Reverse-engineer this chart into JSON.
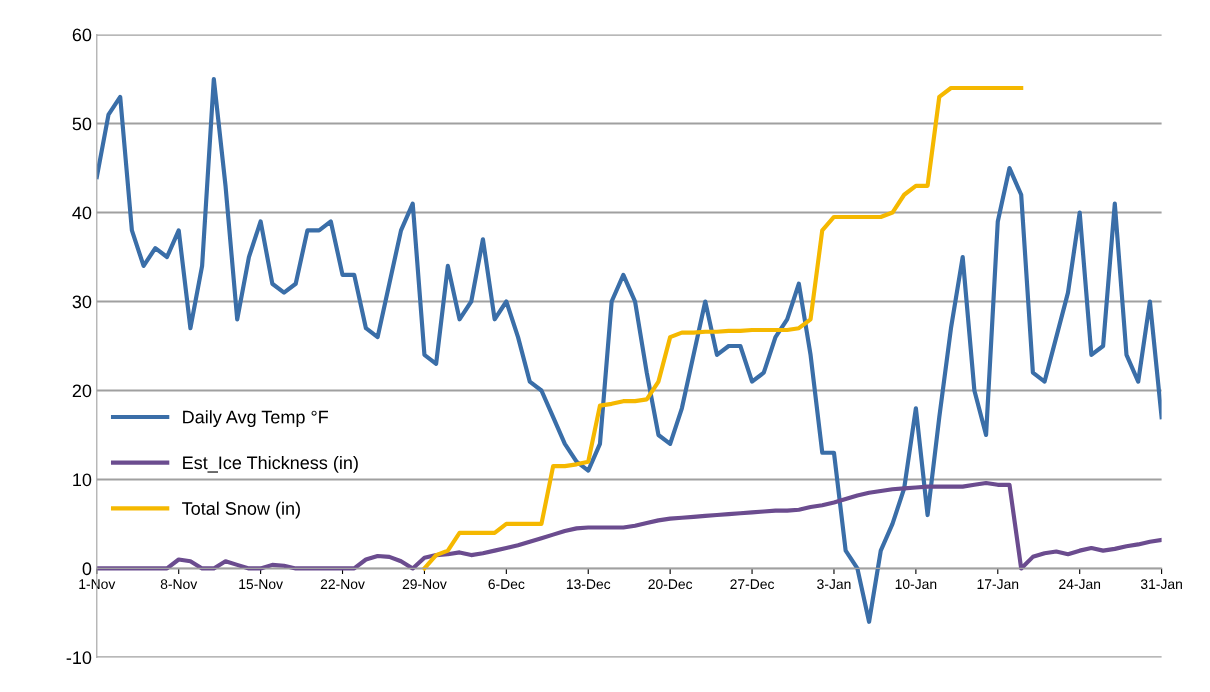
{
  "chart_data": {
    "type": "line",
    "categories": [
      "1-Nov",
      null,
      null,
      null,
      null,
      null,
      null,
      "8-Nov",
      null,
      null,
      null,
      null,
      null,
      null,
      "15-Nov",
      null,
      null,
      null,
      null,
      null,
      null,
      "22-Nov",
      null,
      null,
      null,
      null,
      null,
      null,
      "29-Nov",
      null,
      null,
      null,
      null,
      null,
      null,
      "6-Dec",
      null,
      null,
      null,
      null,
      null,
      null,
      "13-Dec",
      null,
      null,
      null,
      null,
      null,
      null,
      "20-Dec",
      null,
      null,
      null,
      null,
      null,
      null,
      "27-Dec",
      null,
      null,
      null,
      null,
      null,
      null,
      "3-Jan",
      null,
      null,
      null,
      null,
      null,
      null,
      "10-Jan",
      null,
      null,
      null,
      null,
      null,
      null,
      "17-Jan",
      null,
      null,
      null,
      null,
      null,
      null,
      "24-Jan",
      null,
      null,
      null,
      null,
      null,
      null,
      "31-Jan"
    ],
    "series": [
      {
        "name": "Daily Avg Temp °F",
        "color": "#3a6ea8",
        "values": [
          44,
          51,
          53,
          38,
          34,
          36,
          35,
          38,
          27,
          34,
          55,
          43,
          28,
          35,
          39,
          32,
          31,
          32,
          38,
          38,
          39,
          33,
          33,
          27,
          26,
          32,
          38,
          41,
          24,
          23,
          34,
          28,
          30,
          37,
          28,
          30,
          26,
          21,
          20,
          17,
          14,
          12,
          11,
          14,
          30,
          33,
          30,
          22,
          15,
          14,
          18,
          24,
          30,
          24,
          25,
          25,
          21,
          22,
          26,
          28,
          32,
          24,
          13,
          13,
          2,
          0,
          -6,
          2,
          5,
          9,
          18,
          6,
          17,
          27,
          35,
          20,
          15,
          39,
          45,
          42,
          22,
          21,
          26,
          31,
          40,
          24,
          25,
          41,
          24,
          21,
          30,
          17
        ]
      },
      {
        "name": "Est_Ice Thickness (in)",
        "color": "#6b4c8f",
        "values": [
          0,
          0,
          0,
          0,
          0,
          0,
          0,
          1,
          0.8,
          0,
          0,
          0.8,
          0.4,
          0,
          0,
          0.4,
          0.3,
          0,
          0,
          0,
          0,
          0,
          0,
          1,
          1.4,
          1.3,
          0.8,
          0,
          1.2,
          1.5,
          1.6,
          1.8,
          1.5,
          1.7,
          2.0,
          2.3,
          2.6,
          3.0,
          3.4,
          3.8,
          4.2,
          4.5,
          4.6,
          4.6,
          4.6,
          4.6,
          4.8,
          5.1,
          5.4,
          5.6,
          5.7,
          5.8,
          5.9,
          6.0,
          6.1,
          6.2,
          6.3,
          6.4,
          6.5,
          6.5,
          6.6,
          6.9,
          7.1,
          7.4,
          7.8,
          8.2,
          8.5,
          8.7,
          8.9,
          9.0,
          9.1,
          9.2,
          9.2,
          9.2,
          9.2,
          9.4,
          9.6,
          9.4,
          9.4,
          0,
          1.3,
          1.7,
          1.9,
          1.6,
          2.0,
          2.3,
          2.0,
          2.2,
          2.5,
          2.7,
          3.0,
          3.2
        ]
      },
      {
        "name": "Total Snow (in)",
        "color": "#f5b800",
        "values": [
          null,
          null,
          null,
          null,
          null,
          null,
          null,
          null,
          null,
          null,
          null,
          null,
          null,
          null,
          null,
          null,
          null,
          null,
          null,
          null,
          null,
          null,
          null,
          null,
          null,
          null,
          null,
          null,
          0,
          1.5,
          2,
          4,
          4,
          4,
          4,
          5,
          5,
          5,
          5,
          11.5,
          11.5,
          11.7,
          12,
          18.3,
          18.5,
          18.8,
          18.8,
          19,
          21,
          26,
          26.5,
          26.5,
          26.6,
          26.6,
          26.7,
          26.7,
          26.8,
          26.8,
          26.8,
          26.8,
          27,
          28,
          38,
          39.5,
          39.5,
          39.5,
          39.5,
          39.5,
          40,
          42,
          43,
          43,
          53,
          54,
          54,
          54,
          54,
          54,
          54,
          54,
          null,
          null,
          null,
          null,
          null,
          null,
          null,
          null,
          null,
          null,
          null,
          null
        ]
      }
    ],
    "ylim": [
      -10,
      60
    ],
    "yticks": [
      -10,
      0,
      10,
      20,
      30,
      40,
      50,
      60
    ],
    "grid": "y",
    "legend": "center left",
    "marker": "none",
    "line_style": "solid"
  }
}
